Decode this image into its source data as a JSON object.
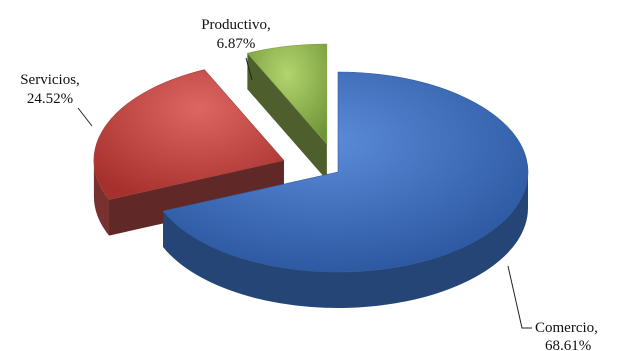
{
  "chart_data": {
    "type": "pie",
    "style": "3d-exploded",
    "title": "",
    "legend": "none",
    "slices": [
      {
        "label": "Comercio",
        "value": 68.61,
        "label_text": "Comercio,",
        "value_text": "68.61%",
        "color": "#3d6fc0"
      },
      {
        "label": "Servicios",
        "value": 24.52,
        "label_text": "Servicios,",
        "value_text": "24.52%",
        "color": "#c0504d"
      },
      {
        "label": "Productivo",
        "value": 6.87,
        "label_text": "Productivo,",
        "value_text": "6.87%",
        "color": "#9bbb59"
      }
    ]
  }
}
